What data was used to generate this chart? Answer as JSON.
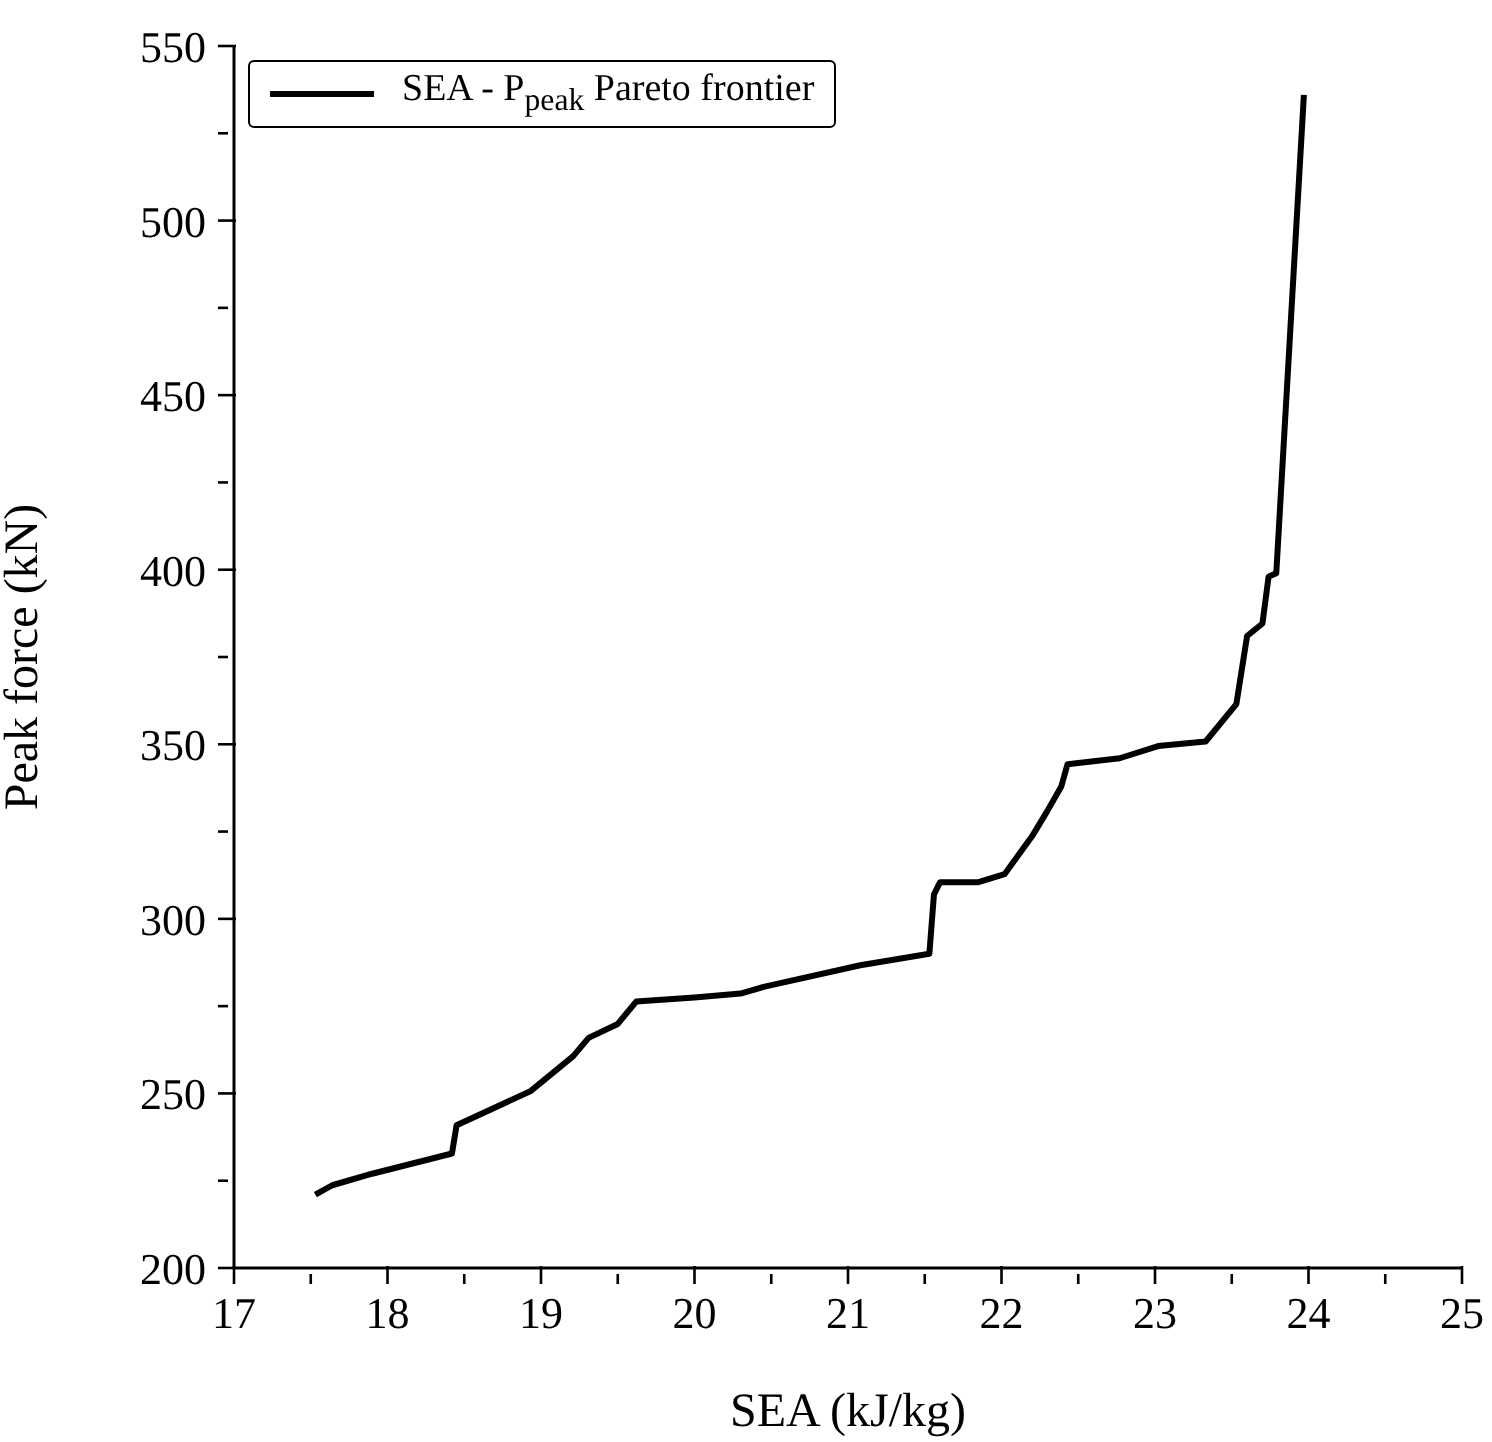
{
  "chart_data": {
    "type": "line",
    "xlabel": "SEA (kJ/kg)",
    "ylabel": "Peak force (kN)",
    "xlim": [
      17,
      25
    ],
    "ylim": [
      200,
      550
    ],
    "xticks": [
      17,
      {
        "value": 17.5,
        "label": null
      },
      18,
      {
        "value": 18.5,
        "label": null
      },
      19,
      {
        "value": 19.5,
        "label": null
      },
      20,
      {
        "value": 20.5,
        "label": null
      },
      21,
      {
        "value": 21.5,
        "label": null
      },
      22,
      {
        "value": 22.5,
        "label": null
      },
      23,
      {
        "value": 23.5,
        "label": null
      },
      24,
      {
        "value": 24.5,
        "label": null
      },
      25
    ],
    "yticks": [
      200,
      {
        "value": 225,
        "label": null
      },
      250,
      {
        "value": 275,
        "label": null
      },
      300,
      {
        "value": 325,
        "label": null
      },
      350,
      {
        "value": 375,
        "label": null
      },
      400,
      {
        "value": 425,
        "label": null
      },
      450,
      {
        "value": 475,
        "label": null
      },
      500,
      {
        "value": 525,
        "label": null
      },
      550
    ],
    "legend": "top left",
    "marker": "none",
    "line_style": "solid",
    "series": [
      {
        "name": "SEA - P$_{peak}$ Pareto frontier",
        "color": "#000000",
        "x": [
          17.53,
          17.64,
          17.9,
          18.42,
          18.45,
          18.93,
          19.21,
          19.31,
          19.5,
          19.62,
          20.0,
          20.3,
          20.45,
          21.08,
          21.53,
          21.56,
          21.6,
          21.85,
          22.02,
          22.2,
          22.3,
          22.39,
          22.43,
          22.77,
          23.02,
          23.33,
          23.53,
          23.6,
          23.7,
          23.74,
          23.79,
          23.97
        ],
        "values": [
          221,
          223.7,
          227,
          232.8,
          240.9,
          250.6,
          260.7,
          265.9,
          269.9,
          276.3,
          277.5,
          278.6,
          280.5,
          286.7,
          290,
          307,
          310.5,
          310.5,
          312.8,
          323.7,
          331,
          338,
          344.3,
          346,
          349.5,
          350.8,
          361.5,
          381,
          384.6,
          398,
          399,
          536
        ]
      }
    ]
  }
}
